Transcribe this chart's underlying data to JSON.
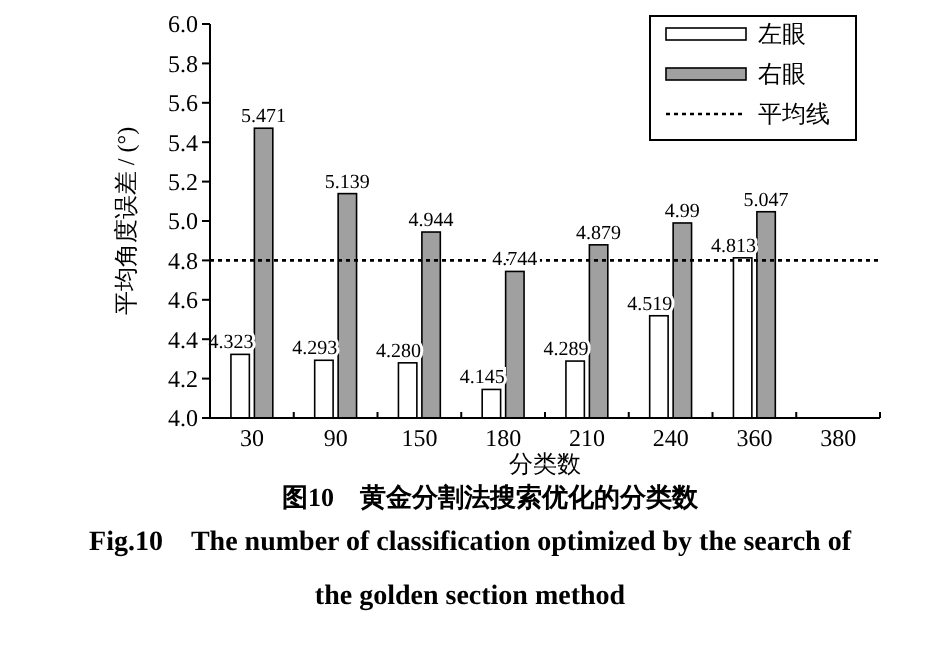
{
  "chart_data": {
    "type": "bar",
    "title": "图10　黄金分割法搜索优化的分类数",
    "subtitle": "Fig.10　The number of classification optimized by the search of the golden section method",
    "xlabel": "分类数",
    "ylabel": "平均角度误差 / (°)",
    "categories": [
      "30",
      "90",
      "150",
      "180",
      "210",
      "240",
      "360",
      "380"
    ],
    "series": [
      {
        "name": "左眼",
        "color": "#ffffff",
        "values": [
          4.323,
          4.293,
          4.28,
          4.145,
          4.289,
          4.519,
          4.813,
          null
        ],
        "value_labels": [
          "4.323",
          "4.293",
          "4.280",
          "4.145",
          "4.289",
          "4.519",
          "4.813",
          null
        ]
      },
      {
        "name": "右眼",
        "color": "#a0a0a0",
        "values": [
          5.471,
          5.139,
          4.944,
          4.744,
          4.879,
          4.99,
          5.047,
          null
        ],
        "value_labels": [
          "5.471",
          "5.139",
          "4.944",
          "4.744",
          "4.879",
          "4.99",
          "5.047",
          null
        ]
      }
    ],
    "ylim": [
      4.0,
      6.0
    ],
    "yticks": [
      {
        "value": 4.0,
        "label": "4.0"
      },
      {
        "value": 4.2,
        "label": "4.2"
      },
      {
        "value": 4.4,
        "label": "4.4"
      },
      {
        "value": 4.6,
        "label": "4.6"
      },
      {
        "value": 4.8,
        "label": "4.8"
      },
      {
        "value": 5.0,
        "label": "5.0"
      },
      {
        "value": 5.2,
        "label": "5.2"
      },
      {
        "value": 5.4,
        "label": "5.4"
      },
      {
        "value": 5.6,
        "label": "5.6"
      },
      {
        "value": 5.8,
        "label": "5.8"
      },
      {
        "value": 6.0,
        "label": "6.0"
      }
    ],
    "ref_lines": [
      {
        "axis": "y",
        "value": 4.8,
        "label": "平均线",
        "line_style": "dotted",
        "color": "#000000"
      }
    ],
    "legend": "top right",
    "grid": false
  }
}
